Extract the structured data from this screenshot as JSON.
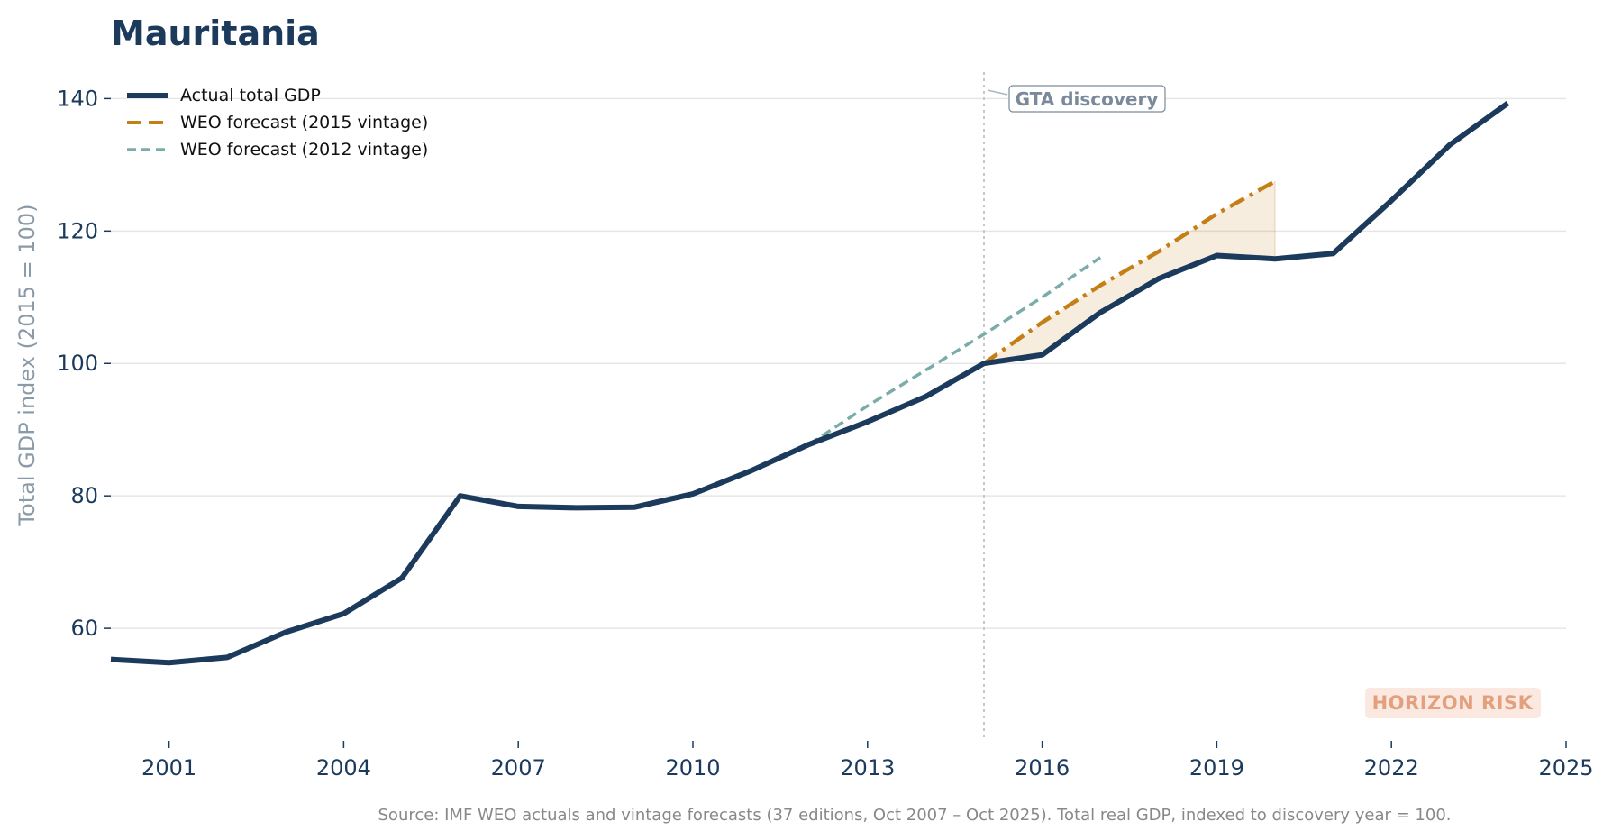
{
  "chart_data": {
    "type": "line",
    "title": "Mauritania",
    "ylabel": "Total GDP index (2015 = 100)",
    "xlabel": "",
    "xlim": [
      2000,
      2025
    ],
    "ylim": [
      43,
      144
    ],
    "x_ticks": [
      "2001",
      "2004",
      "2007",
      "2010",
      "2013",
      "2016",
      "2019",
      "2022",
      "2025"
    ],
    "y_ticks": [
      "60",
      "80",
      "100",
      "120",
      "140"
    ],
    "grid": "horizontal",
    "legend_position": "top-left",
    "series": [
      {
        "name": "Actual total GDP",
        "style": "solid",
        "color": "#1b3a5c",
        "x": [
          2000,
          2001,
          2002,
          2003,
          2004,
          2005,
          2006,
          2007,
          2008,
          2009,
          2010,
          2011,
          2012,
          2013,
          2014,
          2015,
          2016,
          2017,
          2018,
          2019,
          2020,
          2021,
          2022,
          2023,
          2024
        ],
        "values": [
          55.3,
          54.8,
          55.6,
          59.4,
          62.2,
          67.6,
          80.0,
          78.4,
          78.2,
          78.3,
          80.3,
          83.8,
          87.8,
          91.2,
          95.0,
          100.0,
          101.3,
          107.7,
          112.8,
          116.3,
          115.8,
          116.6,
          124.6,
          133.0,
          139.3
        ]
      },
      {
        "name": "WEO forecast (2015 vintage)",
        "style": "dashdot",
        "color": "#c47f17",
        "x": [
          2015,
          2016,
          2017,
          2018,
          2019,
          2020
        ],
        "values": [
          100.0,
          106.2,
          111.8,
          116.9,
          122.6,
          127.5
        ]
      },
      {
        "name": "WEO forecast (2012 vintage)",
        "style": "dashed",
        "color": "#7aacaa",
        "x": [
          2012,
          2013,
          2014,
          2015,
          2016,
          2017
        ],
        "values": [
          87.8,
          93.6,
          99.0,
          104.4,
          110.0,
          116.0
        ]
      }
    ],
    "shaded_gap": {
      "between": [
        "WEO forecast (2015 vintage)",
        "Actual total GDP"
      ],
      "x_from": 2015,
      "x_to": 2020,
      "color": "#c47f17"
    },
    "annotations": [
      {
        "text": "GTA discovery",
        "x": 2015
      },
      {
        "text": "HORIZON RISK"
      }
    ],
    "discovery_year": 2015,
    "source": "Source: IMF WEO actuals and vintage forecasts (37 editions, Oct 2007 – Oct 2025). Total real GDP, indexed to discovery year = 100."
  }
}
